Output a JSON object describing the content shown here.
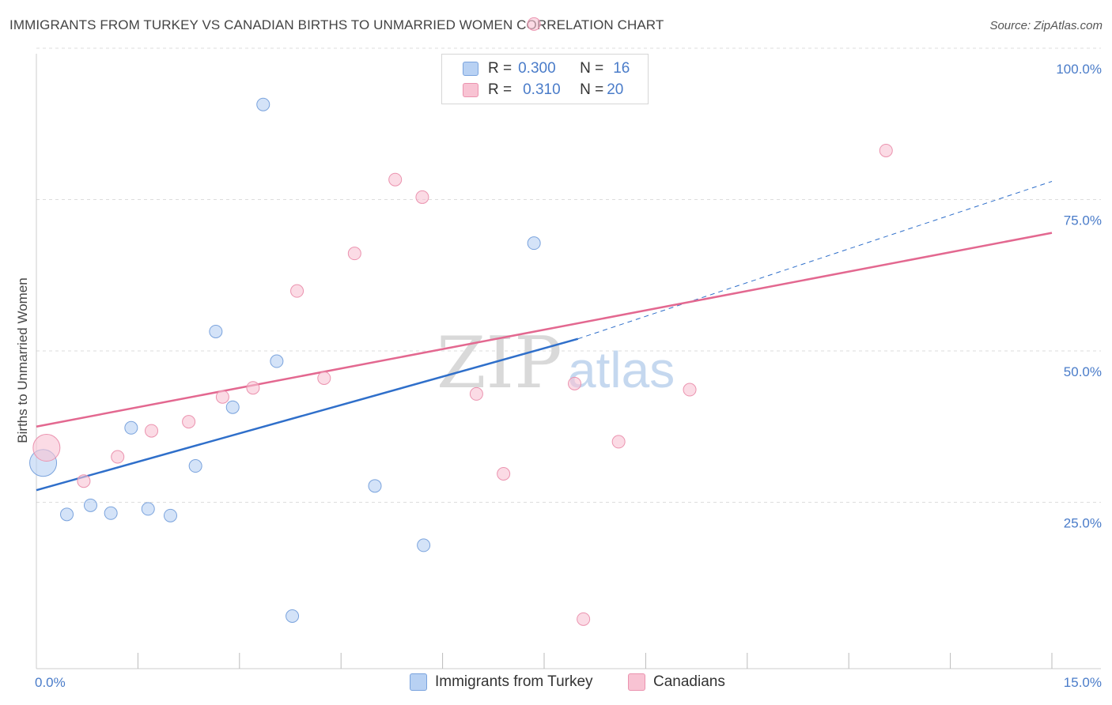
{
  "title": "IMMIGRANTS FROM TURKEY VS CANADIAN BIRTHS TO UNMARRIED WOMEN CORRELATION CHART",
  "source": "Source: ZipAtlas.com",
  "watermark": {
    "zip": "ZIP",
    "atlas": "atlas"
  },
  "legend": {
    "rows": [
      {
        "r_label": "R =",
        "r_value": "0.300",
        "n_label": "N =",
        "n_value": "16"
      },
      {
        "r_label": "R =",
        "r_value": "0.310",
        "n_label": "N =",
        "n_value": "20"
      }
    ]
  },
  "bottom_legend": {
    "series1": "Immigrants from Turkey",
    "series2": "Canadians"
  },
  "colors": {
    "blue_fill": "#b8d1f3",
    "blue_stroke": "#7aa3dd",
    "blue_line": "#2f6fca",
    "pink_fill": "#f8c3d3",
    "pink_stroke": "#eb93af",
    "pink_line": "#e36890",
    "grid": "#dddddd",
    "tick_text": "#4a7cc9"
  },
  "chart_data": {
    "type": "scatter",
    "title": "IMMIGRANTS FROM TURKEY VS CANADIAN BIRTHS TO UNMARRIED WOMEN CORRELATION CHART",
    "xlabel": "",
    "ylabel": "Births to Unmarried Women",
    "xlim": [
      0,
      15
    ],
    "ylim": [
      0,
      100
    ],
    "x_tick_labels": [
      "0.0%",
      "15.0%"
    ],
    "y_ticks": [
      25,
      50,
      75,
      100
    ],
    "y_tick_labels": [
      "25.0%",
      "50.0%",
      "75.0%",
      "100.0%"
    ],
    "grid": true,
    "legend_position": "top-center",
    "series": [
      {
        "name": "Immigrants from Turkey",
        "r": 0.3,
        "n": 16,
        "points": [
          {
            "x": 0.1,
            "y": 31.5,
            "big": true
          },
          {
            "x": 0.45,
            "y": 23.0
          },
          {
            "x": 0.8,
            "y": 24.5
          },
          {
            "x": 1.1,
            "y": 23.2
          },
          {
            "x": 1.4,
            "y": 37.3
          },
          {
            "x": 1.65,
            "y": 23.9
          },
          {
            "x": 1.98,
            "y": 22.8
          },
          {
            "x": 2.35,
            "y": 31.0
          },
          {
            "x": 2.65,
            "y": 53.2
          },
          {
            "x": 2.9,
            "y": 40.7
          },
          {
            "x": 3.35,
            "y": 90.7
          },
          {
            "x": 3.55,
            "y": 48.3
          },
          {
            "x": 3.78,
            "y": 6.2
          },
          {
            "x": 5.0,
            "y": 27.7
          },
          {
            "x": 5.72,
            "y": 17.9
          },
          {
            "x": 7.35,
            "y": 67.8
          }
        ],
        "trend": {
          "x0": 0,
          "y0": 27.0,
          "x1": 8.0,
          "y1": 52.0,
          "dashed_x1": 15.0,
          "dashed_y1": 78.0
        }
      },
      {
        "name": "Canadians",
        "r": 0.31,
        "n": 20,
        "points": [
          {
            "x": 0.15,
            "y": 34.0,
            "big": true
          },
          {
            "x": 0.7,
            "y": 28.5
          },
          {
            "x": 1.2,
            "y": 32.5
          },
          {
            "x": 1.7,
            "y": 36.8
          },
          {
            "x": 2.25,
            "y": 38.3
          },
          {
            "x": 2.75,
            "y": 42.4
          },
          {
            "x": 3.2,
            "y": 43.9
          },
          {
            "x": 3.85,
            "y": 59.9
          },
          {
            "x": 4.25,
            "y": 45.5
          },
          {
            "x": 4.7,
            "y": 66.1
          },
          {
            "x": 5.3,
            "y": 78.3
          },
          {
            "x": 5.7,
            "y": 75.4
          },
          {
            "x": 6.5,
            "y": 42.9
          },
          {
            "x": 6.9,
            "y": 29.7
          },
          {
            "x": 7.95,
            "y": 44.6
          },
          {
            "x": 8.08,
            "y": 5.7
          },
          {
            "x": 8.6,
            "y": 35.0
          },
          {
            "x": 9.65,
            "y": 43.6
          },
          {
            "x": 12.55,
            "y": 83.1
          },
          {
            "x": 7.35,
            "y": 104.0
          }
        ],
        "trend": {
          "x0": 0,
          "y0": 37.5,
          "x1": 15.0,
          "y1": 69.5
        }
      }
    ]
  }
}
